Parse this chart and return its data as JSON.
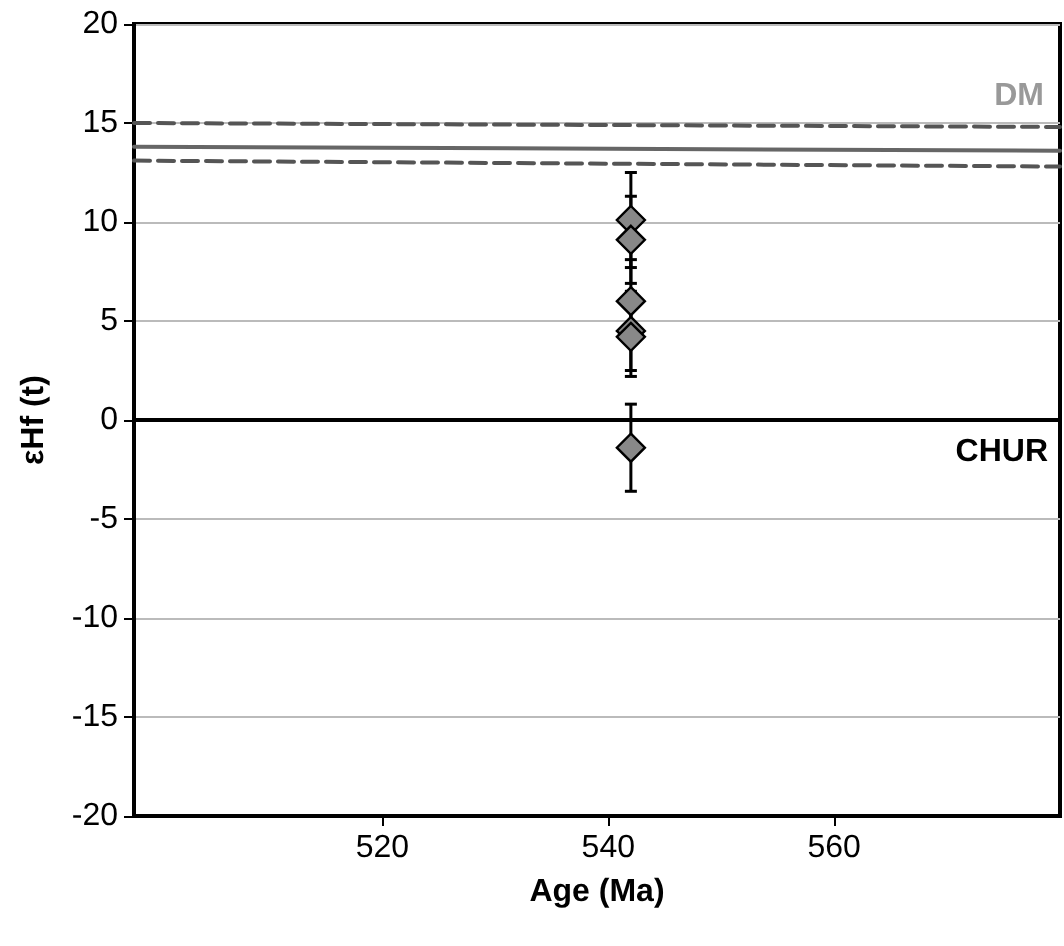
{
  "chart_data": {
    "type": "scatter",
    "xlabel": "Age (Ma)",
    "ylabel": "εHf (t)",
    "xlim": [
      498,
      580
    ],
    "ylim": [
      -20,
      20
    ],
    "xticks": [
      520,
      540,
      560
    ],
    "yticks": [
      -20,
      -15,
      -10,
      -5,
      0,
      5,
      10,
      15,
      20
    ],
    "grid": "y",
    "marker": "diamond",
    "series": [
      {
        "color": "#888888",
        "x": [
          542,
          542,
          542,
          542,
          542,
          542
        ],
        "values": [
          10.1,
          9.1,
          6.0,
          4.5,
          4.2,
          -1.4
        ],
        "errors": [
          2.4,
          2.2,
          2.1,
          2.0,
          2.0,
          2.2
        ]
      },
      {
        "type": "line",
        "color": "#666666",
        "x": [
          498,
          580
        ],
        "values": [
          13.8,
          13.6
        ],
        "line_style": "solid",
        "marker": "none"
      },
      {
        "type": "line",
        "color": "#555555",
        "x": [
          498,
          580
        ],
        "values": [
          15.0,
          14.8
        ],
        "line_style": "dashed",
        "marker": "none"
      },
      {
        "type": "line",
        "color": "#555555",
        "x": [
          498,
          580
        ],
        "values": [
          13.1,
          12.8
        ],
        "line_style": "dashed",
        "marker": "none"
      }
    ],
    "ref_lines": [
      {
        "axis": "y",
        "value": 0,
        "label": "CHUR",
        "color": "#000000"
      }
    ],
    "annotations": [
      "DM"
    ]
  }
}
